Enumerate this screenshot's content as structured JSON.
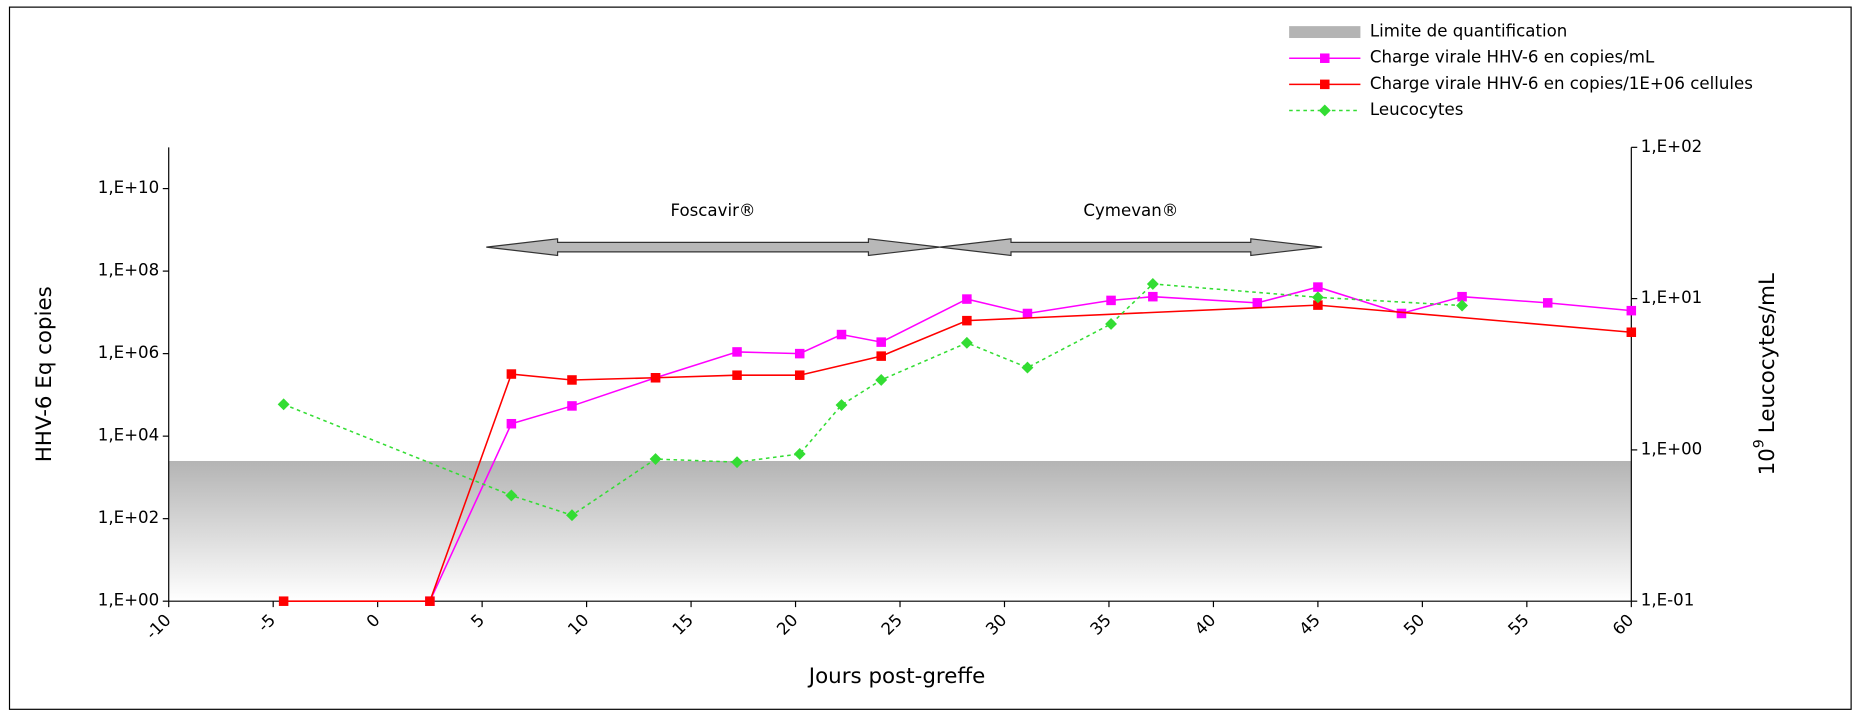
{
  "chart_data": {
    "type": "line",
    "xlabel": "Jours post-greffe",
    "ylabel": "HHV-6 Eq copies",
    "y2label": {
      "base": "10",
      "exponent": "9",
      "text": "Leucocytes/mL"
    },
    "xlim": [
      -10,
      60
    ],
    "xticks": [
      -10,
      -5,
      0,
      5,
      10,
      15,
      20,
      25,
      30,
      35,
      40,
      45,
      50,
      55,
      60
    ],
    "ylog": true,
    "ylim": [
      1,
      100000000000
    ],
    "yticks": [
      {
        "value": 1,
        "label": "1,E+00"
      },
      {
        "value": 100,
        "label": "1,E+02"
      },
      {
        "value": 10000,
        "label": "1,E+04"
      },
      {
        "value": 1000000,
        "label": "1,E+06"
      },
      {
        "value": 100000000,
        "label": "1,E+08"
      },
      {
        "value": 10000000000,
        "label": "1,E+10"
      }
    ],
    "y2log": true,
    "y2lim": [
      0.1,
      100
    ],
    "y2ticks": [
      {
        "value": 0.1,
        "label": "1,E-01"
      },
      {
        "value": 1,
        "label": "1,E+00"
      },
      {
        "value": 10,
        "label": "1,E+01"
      },
      {
        "value": 100,
        "label": "1,E+02"
      }
    ],
    "grid": false,
    "legend": "top-right",
    "band": {
      "name": "Limite de quantification",
      "value": 2500,
      "color": "#b4b4b4"
    },
    "series": [
      {
        "name": "Charge virale HHV-6 en copies/mL",
        "color": "#ff00ff",
        "marker": "square",
        "linestyle": "solid",
        "x": [
          2.5,
          6.4,
          9.3,
          13.3,
          17.2,
          20.2,
          22.2,
          24.1,
          28.2,
          31.1,
          35.1,
          37.1,
          42.1,
          45,
          49,
          51.9,
          56,
          60
        ],
        "values": [
          1,
          20000,
          54000,
          260000,
          1100000,
          1000000,
          2900000,
          1900000,
          21000000,
          9400000,
          19500000,
          24000000,
          17000000,
          41000000,
          9400000,
          24000000,
          17000000,
          11000000
        ]
      },
      {
        "name": "Charge virale HHV-6 en copies/1E+06 cellules",
        "color": "#ff0000",
        "marker": "square",
        "linestyle": "solid",
        "x": [
          -4.5,
          2.5,
          6.4,
          9.3,
          13.3,
          17.2,
          20.2,
          24.1,
          28.2,
          45,
          60
        ],
        "values": [
          1,
          1,
          320000,
          230000,
          260000,
          300000,
          300000,
          870000,
          6300000,
          15000000,
          3300000
        ]
      },
      {
        "name": "Leucocytes",
        "color": "#33dd33",
        "marker": "diamond",
        "linestyle": "dotted",
        "axis": "y2",
        "x": [
          -4.5,
          6.4,
          9.3,
          13.3,
          17.2,
          20.2,
          22.2,
          24.1,
          28.2,
          31.1,
          35.1,
          37.1,
          45,
          51.9
        ],
        "values": [
          2,
          0.5,
          0.37,
          0.87,
          0.83,
          0.94,
          1.98,
          2.9,
          5.1,
          3.5,
          6.8,
          12.5,
          10.2,
          9
        ]
      }
    ],
    "annotations": [
      {
        "text": "Foscavir®",
        "x": [
          5.2,
          26.9
        ]
      },
      {
        "text": "Cymevan®",
        "x": [
          26.9,
          45.2
        ]
      }
    ]
  }
}
